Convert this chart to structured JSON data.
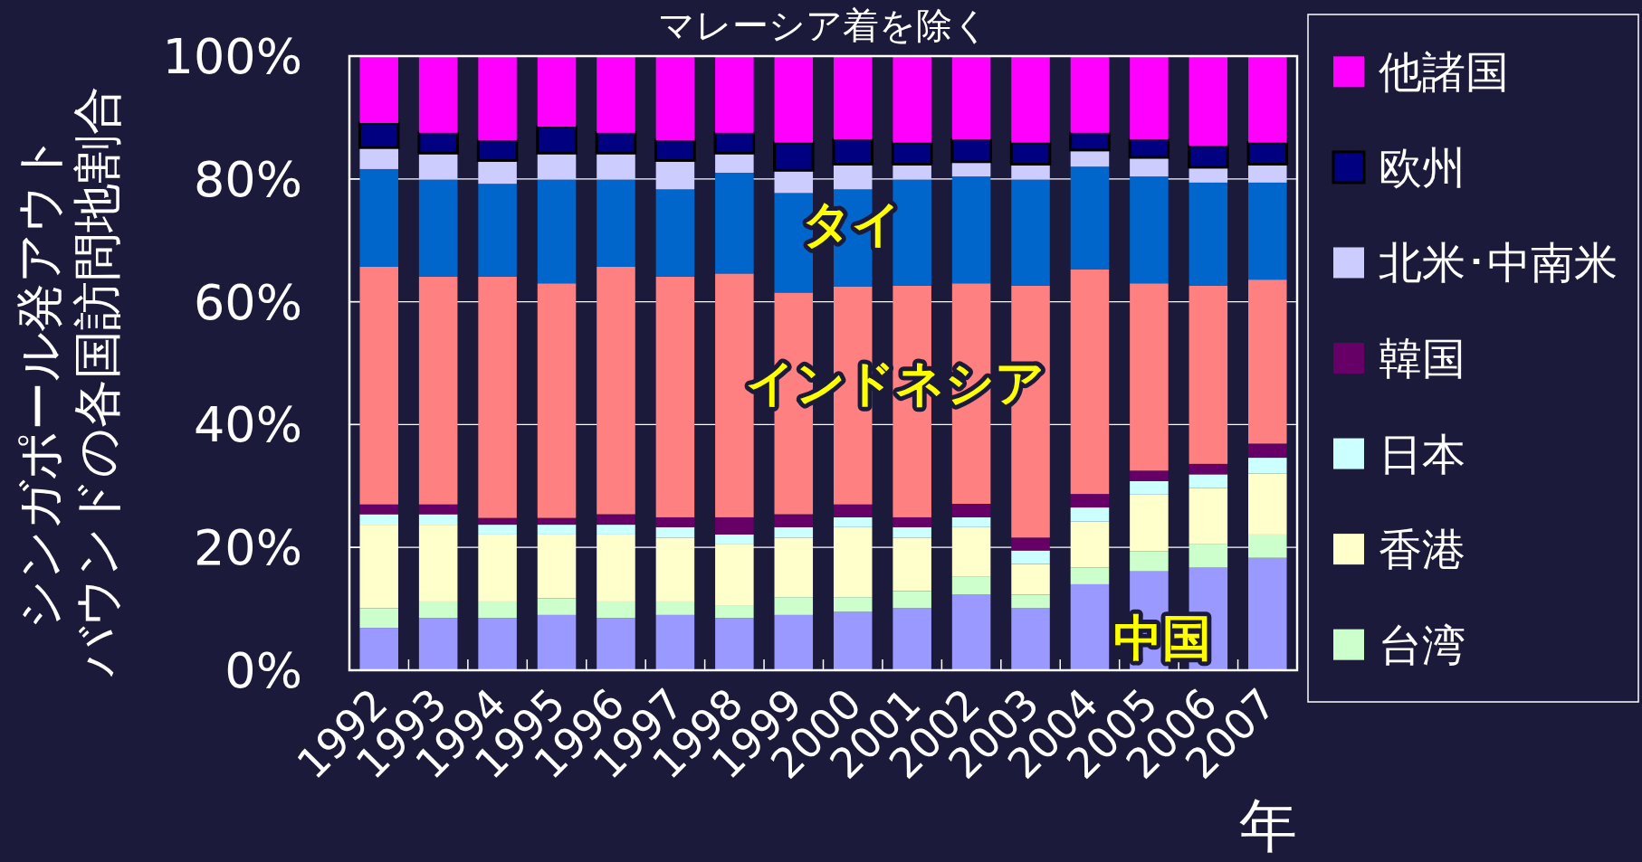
{
  "chart_data": {
    "type": "bar",
    "stacked": true,
    "title": "マレーシア着を除く",
    "xlabel": "年",
    "ylabel": "シンガポール発アウトバウンドの各国訪問地割合",
    "categories": [
      "1992",
      "1993",
      "1994",
      "1995",
      "1996",
      "1997",
      "1998",
      "1999",
      "2000",
      "2001",
      "2002",
      "2003",
      "2004",
      "2005",
      "2006",
      "2007"
    ],
    "series": [
      {
        "name": null,
        "color": "#9999ff",
        "values": [
          6.9,
          8.5,
          8.5,
          9.0,
          8.5,
          9.0,
          8.5,
          9.0,
          9.5,
          10.1,
          12.3,
          10.1,
          14.0,
          16.1,
          16.7,
          18.3
        ]
      },
      {
        "name": "台湾",
        "color": "#ccffcc",
        "values": [
          3.2,
          2.7,
          2.7,
          2.7,
          2.7,
          2.2,
          2.1,
          2.9,
          2.4,
          2.8,
          2.9,
          2.2,
          2.7,
          3.3,
          3.9,
          3.8
        ]
      },
      {
        "name": "香港",
        "color": "#ffffcc",
        "values": [
          13.6,
          12.5,
          10.9,
          10.4,
          10.9,
          10.4,
          10.0,
          9.7,
          11.4,
          8.7,
          8.1,
          5.0,
          7.5,
          9.2,
          9.1,
          9.9
        ]
      },
      {
        "name": "日本",
        "color": "#ccffff",
        "values": [
          1.7,
          1.7,
          1.6,
          1.6,
          1.6,
          1.7,
          1.5,
          1.7,
          1.6,
          1.7,
          1.6,
          2.2,
          2.3,
          2.2,
          2.2,
          2.6
        ]
      },
      {
        "name": "韓国",
        "color": "#660066",
        "values": [
          1.6,
          1.6,
          1.1,
          1.1,
          1.7,
          1.6,
          2.8,
          2.1,
          2.1,
          1.6,
          2.2,
          2.1,
          2.2,
          1.7,
          1.7,
          2.3
        ]
      },
      {
        "name": null,
        "color": "#ff8080",
        "values": [
          38.7,
          37.1,
          39.3,
          38.2,
          40.3,
          39.2,
          39.7,
          36.1,
          35.5,
          37.7,
          35.9,
          41.0,
          36.6,
          30.5,
          29.0,
          26.7
        ]
      },
      {
        "name": null,
        "color": "#0066cc",
        "values": [
          15.9,
          15.8,
          15.1,
          16.9,
          14.2,
          14.2,
          16.4,
          16.2,
          15.8,
          17.3,
          17.4,
          17.3,
          16.7,
          17.4,
          16.8,
          15.8
        ]
      },
      {
        "name": "北米･中南米",
        "color": "#ccccff",
        "values": [
          3.5,
          4.3,
          3.8,
          4.3,
          4.3,
          4.7,
          3.2,
          3.7,
          4.1,
          2.5,
          2.4,
          2.5,
          2.7,
          3.1,
          2.5,
          3.0
        ]
      },
      {
        "name": "欧州",
        "color": "#000080",
        "values": [
          4.0,
          3.3,
          3.3,
          4.3,
          3.3,
          3.3,
          3.3,
          4.5,
          4.0,
          3.5,
          3.6,
          3.5,
          2.8,
          2.9,
          3.5,
          3.5
        ]
      },
      {
        "name": "他諸国",
        "color": "#ff00ff",
        "values": [
          10.9,
          12.5,
          13.7,
          11.5,
          12.5,
          13.7,
          12.5,
          14.1,
          13.6,
          14.1,
          13.6,
          14.1,
          12.5,
          13.6,
          14.6,
          14.1
        ]
      }
    ],
    "annotations": [
      "タイ",
      "インドネシア",
      "中国"
    ],
    "ylim": [
      0,
      100
    ],
    "yticks": [
      {
        "value": 0,
        "label": "0%"
      },
      {
        "value": 20,
        "label": "20%"
      },
      {
        "value": 40,
        "label": "40%"
      },
      {
        "value": 60,
        "label": "60%"
      },
      {
        "value": 80,
        "label": "80%"
      },
      {
        "value": 100,
        "label": "100%"
      }
    ],
    "grid": "y",
    "legend": "right"
  }
}
